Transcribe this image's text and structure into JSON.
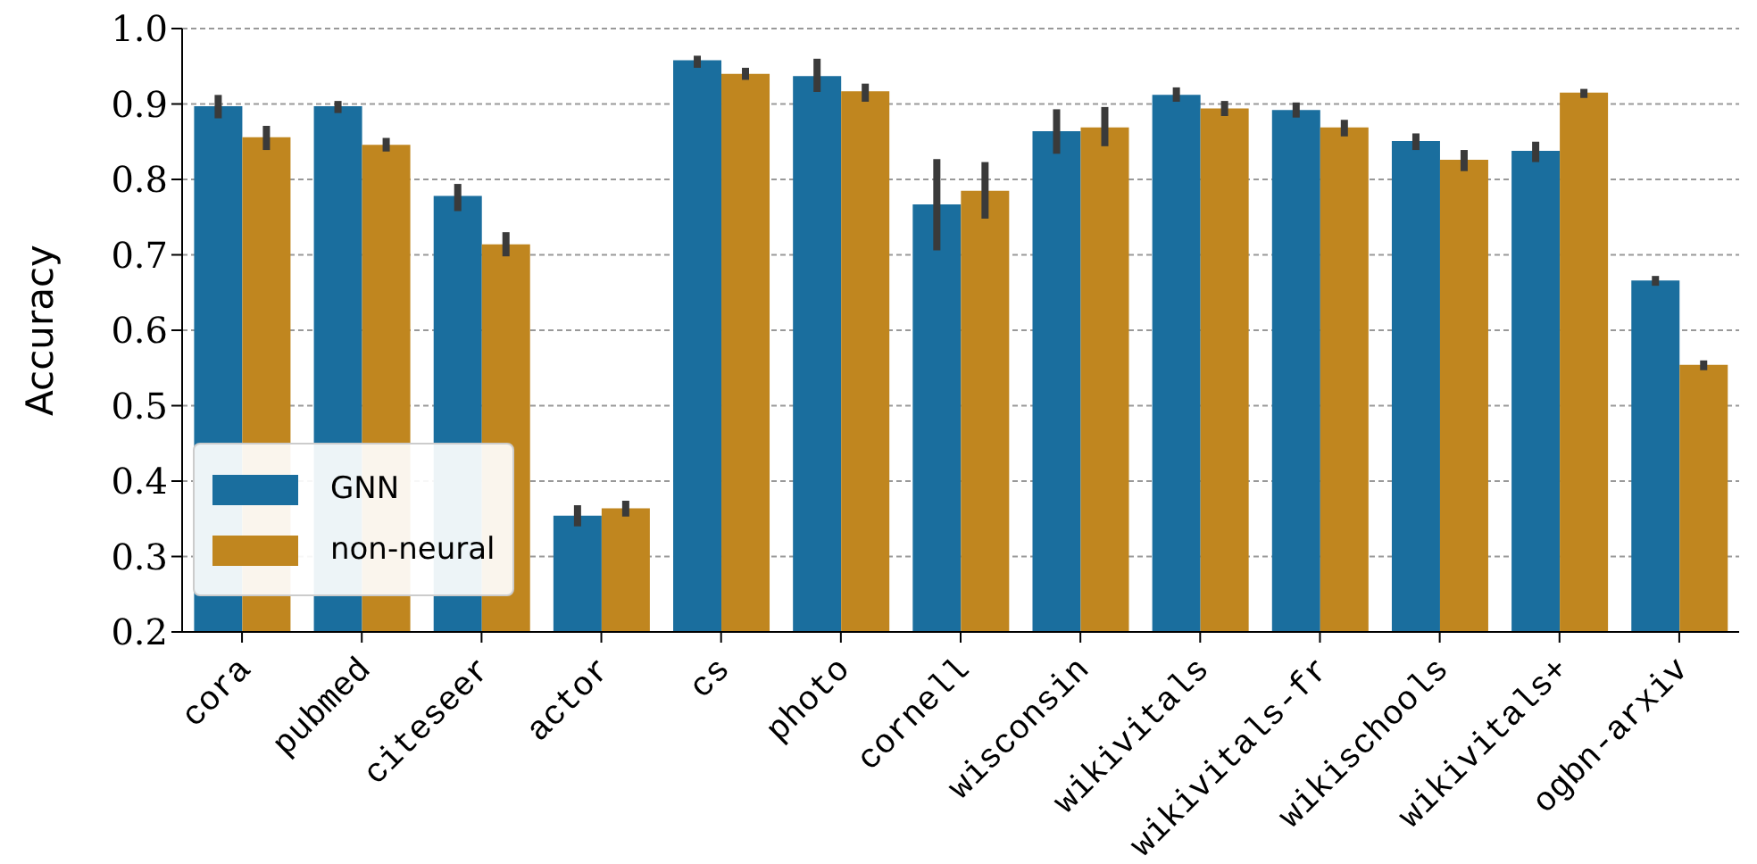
{
  "chart_data": {
    "type": "bar",
    "ylabel": "Accuracy",
    "categories": [
      "cora",
      "pubmed",
      "citeseer",
      "actor",
      "cs",
      "photo",
      "cornell",
      "wisconsin",
      "wikivitals",
      "wikivitals-fr",
      "wikischools",
      "wikivitals+",
      "ogbn-arxiv"
    ],
    "series": [
      {
        "name": "GNN",
        "color": "#1a6e9e",
        "values": [
          0.897,
          0.897,
          0.778,
          0.354,
          0.958,
          0.937,
          0.767,
          0.864,
          0.912,
          0.892,
          0.851,
          0.838,
          0.666
        ],
        "errors": [
          [
            0.881,
            0.912
          ],
          [
            0.888,
            0.904
          ],
          [
            0.758,
            0.794
          ],
          [
            0.34,
            0.368
          ],
          [
            0.948,
            0.964
          ],
          [
            0.916,
            0.96
          ],
          [
            0.706,
            0.827
          ],
          [
            0.834,
            0.893
          ],
          [
            0.903,
            0.922
          ],
          [
            0.882,
            0.902
          ],
          [
            0.839,
            0.861
          ],
          [
            0.823,
            0.85
          ],
          [
            0.659,
            0.672
          ]
        ]
      },
      {
        "name": "non-neural",
        "color": "#c0861f",
        "values": [
          0.856,
          0.846,
          0.714,
          0.364,
          0.94,
          0.917,
          0.785,
          0.869,
          0.894,
          0.869,
          0.826,
          0.915,
          0.554
        ],
        "errors": [
          [
            0.839,
            0.871
          ],
          [
            0.837,
            0.855
          ],
          [
            0.698,
            0.73
          ],
          [
            0.353,
            0.374
          ],
          [
            0.932,
            0.948
          ],
          [
            0.903,
            0.927
          ],
          [
            0.748,
            0.823
          ],
          [
            0.844,
            0.896
          ],
          [
            0.884,
            0.904
          ],
          [
            0.857,
            0.879
          ],
          [
            0.811,
            0.839
          ],
          [
            0.908,
            0.92
          ],
          [
            0.547,
            0.56
          ]
        ]
      }
    ],
    "ylim": [
      0.2,
      1.0
    ],
    "yticks": [
      0.2,
      0.3,
      0.4,
      0.5,
      0.6,
      0.7,
      0.8,
      0.9,
      {
        "value": 1.0,
        "label": "1.0"
      }
    ],
    "grid": "y",
    "legend": "bottom left"
  }
}
